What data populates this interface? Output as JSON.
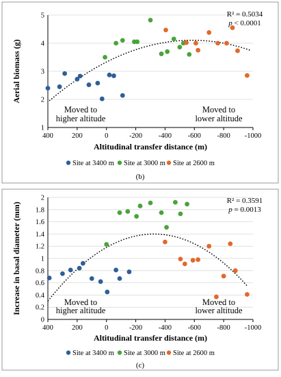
{
  "colors": {
    "site_3400": "#2e5f99",
    "site_3000": "#4aa33a",
    "site_2600": "#e06a2c"
  },
  "chart_data": [
    {
      "type": "scatter",
      "panel_label": "(b)",
      "ylabel": "Aerial biomass (g)",
      "xlabel": "Altitudinal transfer distance (m)",
      "xlim": [
        400,
        -1000
      ],
      "ylim": [
        1,
        5
      ],
      "xticks": [
        "400",
        "200",
        "0",
        "-200",
        "-400",
        "-600",
        "-800",
        "-1000"
      ],
      "yticks": [
        "1",
        "2",
        "3",
        "4",
        "5"
      ],
      "annotation_left": [
        "Moved to",
        "higher altitude"
      ],
      "annotation_right": [
        "Moved to",
        "lower altitude"
      ],
      "r2": "R² = 0.5034",
      "p_prefix": "p",
      "p_rest": " < 0.0001",
      "trend": {
        "type": "quadratic",
        "x_range": [
          390,
          -980
        ],
        "points": [
          [
            390,
            1.95
          ],
          [
            -370,
            4.0
          ],
          [
            -980,
            3.75
          ]
        ]
      },
      "series": [
        {
          "name": "Site at 3400 m",
          "color_key": "site_3400",
          "points": [
            [
              400,
              2.4
            ],
            [
              320,
              2.45
            ],
            [
              285,
              2.92
            ],
            [
              200,
              2.72
            ],
            [
              180,
              2.83
            ],
            [
              120,
              2.52
            ],
            [
              60,
              2.58
            ],
            [
              30,
              2.02
            ],
            [
              -20,
              2.87
            ],
            [
              -50,
              2.84
            ],
            [
              -110,
              2.14
            ]
          ]
        },
        {
          "name": "Site at 3000 m",
          "color_key": "site_3000",
          "points": [
            [
              10,
              3.5
            ],
            [
              -65,
              4.0
            ],
            [
              -110,
              4.1
            ],
            [
              -190,
              4.05
            ],
            [
              -210,
              4.05
            ],
            [
              -300,
              4.82
            ],
            [
              -375,
              3.62
            ],
            [
              -415,
              3.7
            ],
            [
              -460,
              4.15
            ],
            [
              -500,
              3.86
            ],
            [
              -525,
              4.0
            ],
            [
              -565,
              3.6
            ]
          ]
        },
        {
          "name": "Site at 2600 m",
          "color_key": "site_2600",
          "points": [
            [
              -405,
              4.47
            ],
            [
              -545,
              4.02
            ],
            [
              -610,
              4.0
            ],
            [
              -625,
              3.75
            ],
            [
              -700,
              4.38
            ],
            [
              -760,
              4.0
            ],
            [
              -820,
              4.0
            ],
            [
              -860,
              4.55
            ],
            [
              -895,
              3.73
            ],
            [
              -960,
              2.85
            ]
          ]
        }
      ]
    },
    {
      "type": "scatter",
      "panel_label": "(c)",
      "ylabel": "Increase in basal diameter (mm)",
      "xlabel": "Altitudinal transfer distance (m)",
      "xlim": [
        400,
        -1000
      ],
      "ylim": [
        0,
        2
      ],
      "xticks": [
        "400",
        "200",
        "0",
        "-200",
        "-400",
        "-600",
        "-800",
        "-1000"
      ],
      "yticks": [
        "0",
        "0.2",
        "0.4",
        "0.6",
        "0.8",
        "1",
        "1.2",
        "1.4",
        "1.6",
        "1.8",
        "2"
      ],
      "annotation_left": [
        "Moved to",
        "higher altitude"
      ],
      "annotation_right": [
        "Moved to",
        "lower altitude"
      ],
      "r2": "R² = 0.3591",
      "p_prefix": "p",
      "p_rest": " = 0.0013",
      "trend": {
        "type": "quadratic",
        "x_range": [
          400,
          -960
        ],
        "points": [
          [
            400,
            0.3
          ],
          [
            -330,
            1.4
          ],
          [
            -960,
            0.55
          ]
        ]
      },
      "series": [
        {
          "name": "Site at 3400 m",
          "color_key": "site_3400",
          "points": [
            [
              390,
              0.68
            ],
            [
              300,
              0.75
            ],
            [
              245,
              0.81
            ],
            [
              185,
              0.84
            ],
            [
              160,
              0.92
            ],
            [
              100,
              0.67
            ],
            [
              40,
              0.62
            ],
            [
              -5,
              0.45
            ],
            [
              -65,
              0.81
            ],
            [
              -90,
              0.67
            ],
            [
              -155,
              0.78
            ]
          ]
        },
        {
          "name": "Site at 3000 m",
          "color_key": "site_3000",
          "points": [
            [
              0,
              1.23
            ],
            [
              -90,
              1.75
            ],
            [
              -145,
              1.77
            ],
            [
              -205,
              1.69
            ],
            [
              -230,
              1.86
            ],
            [
              -300,
              1.91
            ],
            [
              -375,
              1.75
            ],
            [
              -410,
              1.51
            ],
            [
              -470,
              1.92
            ],
            [
              -505,
              1.73
            ],
            [
              -550,
              1.89
            ]
          ]
        },
        {
          "name": "Site at 2600 m",
          "color_key": "site_2600",
          "points": [
            [
              -400,
              1.27
            ],
            [
              -505,
              0.99
            ],
            [
              -535,
              0.91
            ],
            [
              -590,
              0.97
            ],
            [
              -625,
              0.98
            ],
            [
              -700,
              1.2
            ],
            [
              -750,
              0.37
            ],
            [
              -800,
              0.71
            ],
            [
              -845,
              1.24
            ],
            [
              -880,
              0.8
            ],
            [
              -960,
              0.41
            ]
          ]
        }
      ]
    }
  ]
}
